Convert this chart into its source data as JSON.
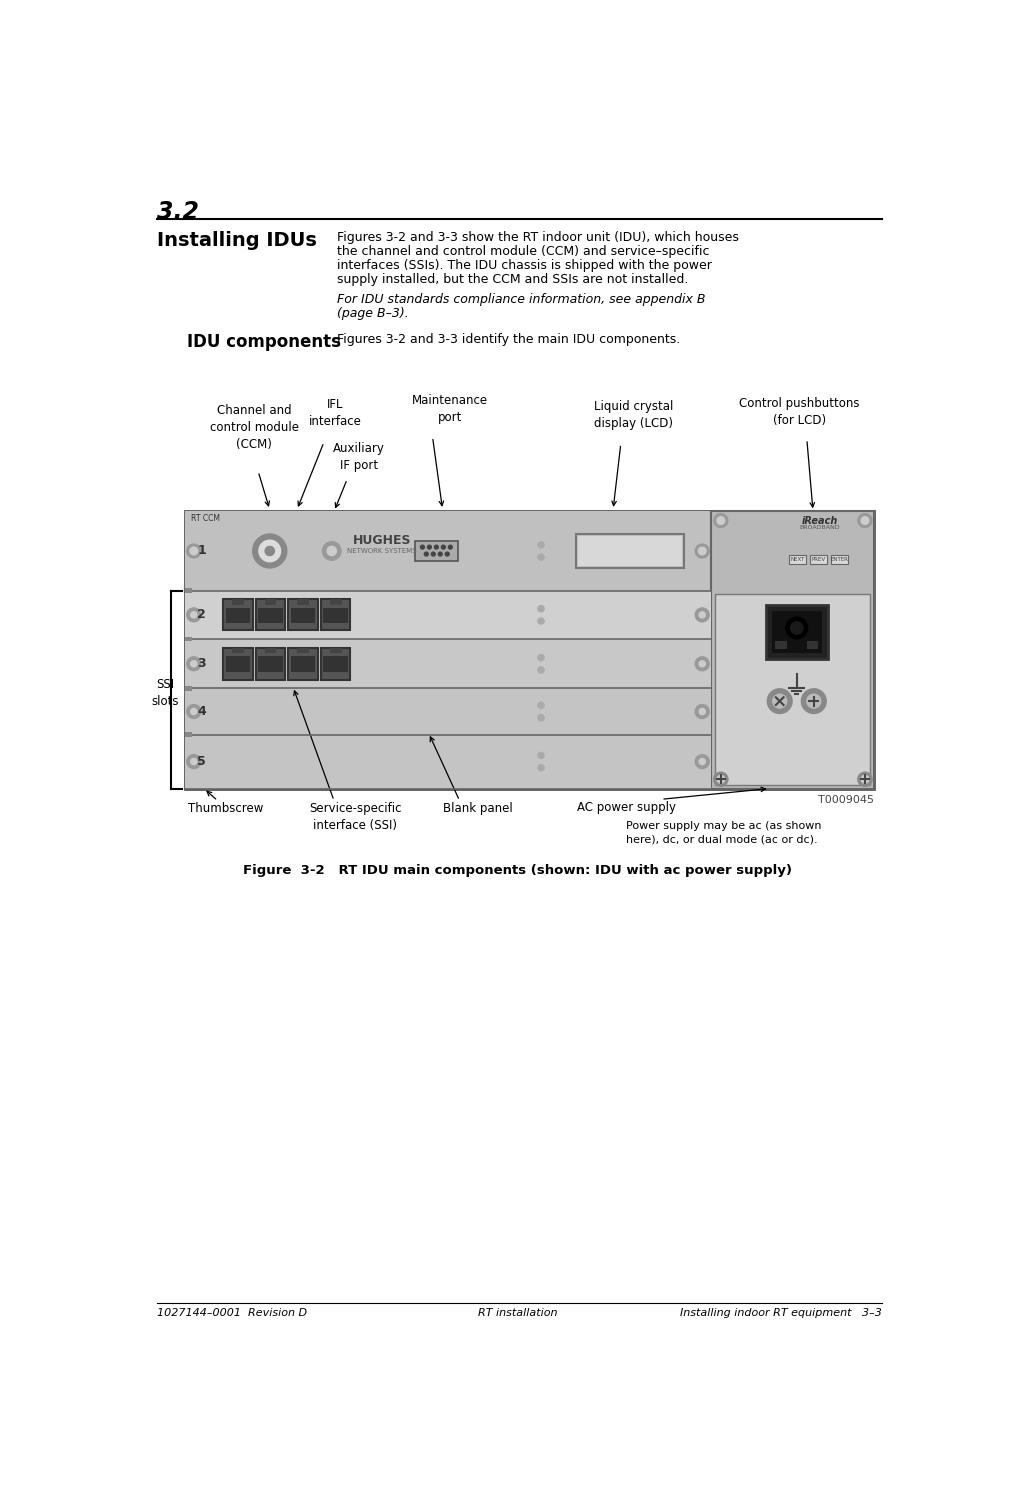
{
  "page_number": "3.2",
  "section_title": "Installing IDUs",
  "section_body": "Figures 3-2 and 3-3 show the RT indoor unit (IDU), which houses\nthe channel and control module (CCM) and service–specific\ninterfaces (SSIs). The IDU chassis is shipped with the power\nsupply installed, but the CCM and SSIs are not installed.",
  "italic_text": "For IDU standards compliance information, see appendix B\n(page B–3).",
  "subsection_title": "IDU components",
  "subsection_body": "Figures 3-2 and 3-3 identify the main IDU components.",
  "figure_caption": "Figure  3-2   RT IDU main components (shown: IDU with ac power supply)",
  "footer_left": "1027144–0001  Revision D",
  "footer_center": "RT installation",
  "footer_right": "Installing indoor RT equipment   3–3",
  "bg_color": "#ffffff",
  "text_color": "#000000",
  "chassis_bg": "#c8c8c8",
  "chassis_edge": "#555555",
  "ps_bg": "#b8b8b8",
  "ccm_bg": "#c0c0c0",
  "slot2_bg": "#d0d0d0",
  "slot3_bg": "#c8c8c8",
  "slot45_bg": "#c4c4c4",
  "port_dark": "#444444",
  "port_mid": "#777777"
}
